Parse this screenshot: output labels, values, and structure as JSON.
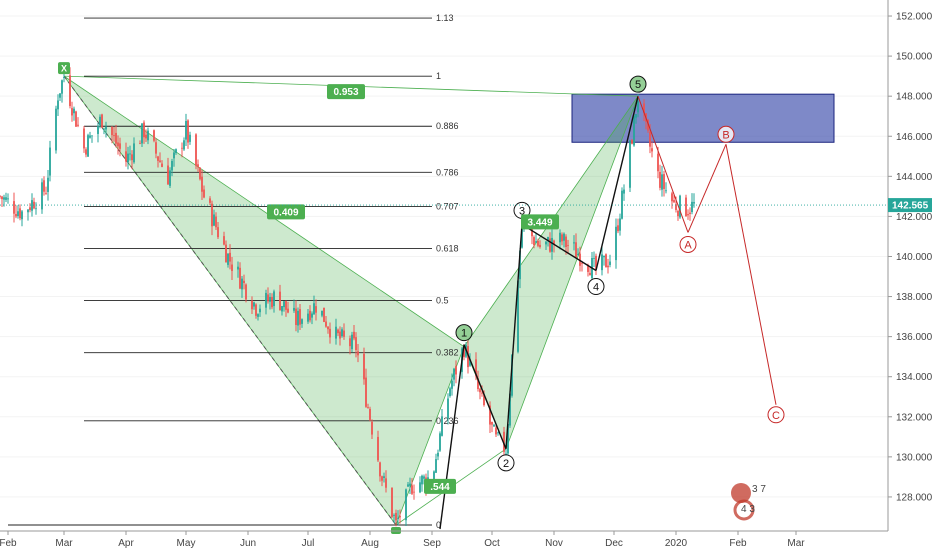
{
  "chart_data": {
    "type": "candlestick",
    "title": "",
    "x_ticks": [
      "Feb",
      "Mar",
      "Apr",
      "May",
      "Jun",
      "Jul",
      "Aug",
      "Sep",
      "Oct",
      "Nov",
      "Dec",
      "2020",
      "Feb",
      "Mar"
    ],
    "y_ticks": [
      "128.000",
      "130.000",
      "132.000",
      "134.000",
      "136.000",
      "138.000",
      "140.000",
      "142.000",
      "144.000",
      "146.000",
      "148.000",
      "150.000",
      "152.000"
    ],
    "ylim": [
      126.3,
      152.8
    ],
    "last_price": "142.565",
    "price_path": [
      [
        "2019-01-28",
        143.0
      ],
      [
        "2019-02-08",
        142.2
      ],
      [
        "2019-02-20",
        143.4
      ],
      [
        "2019-02-26",
        148.1
      ],
      [
        "2019-03-01",
        149.0
      ],
      [
        "2019-03-11",
        145.4
      ],
      [
        "2019-03-20",
        146.9
      ],
      [
        "2019-04-01",
        144.8
      ],
      [
        "2019-04-10",
        146.3
      ],
      [
        "2019-04-22",
        144.0
      ],
      [
        "2019-05-01",
        146.3
      ],
      [
        "2019-05-10",
        143.0
      ],
      [
        "2019-05-22",
        140.0
      ],
      [
        "2019-06-05",
        137.5
      ],
      [
        "2019-06-15",
        138.0
      ],
      [
        "2019-06-25",
        136.8
      ],
      [
        "2019-07-05",
        137.6
      ],
      [
        "2019-07-15",
        136.0
      ],
      [
        "2019-07-25",
        135.5
      ],
      [
        "2019-08-01",
        132.0
      ],
      [
        "2019-08-07",
        129.0
      ],
      [
        "2019-08-14",
        126.6
      ],
      [
        "2019-08-22",
        128.6
      ],
      [
        "2019-09-01",
        129.0
      ],
      [
        "2019-09-10",
        133.5
      ],
      [
        "2019-09-17",
        135.5
      ],
      [
        "2019-09-25",
        133.0
      ],
      [
        "2019-10-03",
        130.8
      ],
      [
        "2019-10-08",
        130.4
      ],
      [
        "2019-10-12",
        136.5
      ],
      [
        "2019-10-16",
        141.6
      ],
      [
        "2019-10-25",
        140.5
      ],
      [
        "2019-11-05",
        140.8
      ],
      [
        "2019-11-15",
        140.0
      ],
      [
        "2019-11-22",
        139.3
      ],
      [
        "2019-11-30",
        140.0
      ],
      [
        "2019-12-07",
        144.0
      ],
      [
        "2019-12-13",
        148.0
      ],
      [
        "2019-12-17",
        146.2
      ],
      [
        "2019-12-23",
        144.0
      ],
      [
        "2019-12-31",
        142.6
      ],
      [
        "2020-01-07",
        142.4
      ],
      [
        "2020-01-11",
        142.6
      ]
    ],
    "fib_levels": [
      {
        "label": "1.13",
        "price": 151.9
      },
      {
        "label": "1",
        "price": 149.0
      },
      {
        "label": "0.886",
        "price": 146.5
      },
      {
        "label": "0.786",
        "price": 144.2
      },
      {
        "label": "0.707",
        "price": 142.5
      },
      {
        "label": "0.618",
        "price": 140.4
      },
      {
        "label": "0.5",
        "price": 137.8
      },
      {
        "label": "0.382",
        "price": 135.2
      },
      {
        "label": "0.236",
        "price": 131.8
      },
      {
        "label": "0",
        "price": 126.6
      }
    ],
    "pattern_points": [
      {
        "label": "X",
        "date": "2019-03-01",
        "price": 149.0
      },
      {
        "label": "",
        "date": "2019-08-14",
        "price": 126.6
      },
      {
        "label": "",
        "date": "2019-09-17",
        "price": 135.5
      },
      {
        "label": "",
        "date": "2019-10-08",
        "price": 130.4
      },
      {
        "label": "",
        "date": "2019-12-13",
        "price": 148.0
      }
    ],
    "ratios": [
      {
        "text": "0.953",
        "date": "2019-07-20",
        "price": 148.2
      },
      {
        "text": "0.409",
        "date": "2019-06-20",
        "price": 142.2
      },
      {
        "text": "3.449",
        "date": "2019-10-25",
        "price": 141.7
      },
      {
        "text": ".544",
        "date": "2019-09-05",
        "price": 128.5
      }
    ],
    "elliott_waves": [
      {
        "label": "1",
        "date": "2019-09-17",
        "price": 135.6
      },
      {
        "label": "2",
        "date": "2019-10-08",
        "price": 130.4
      },
      {
        "label": "3",
        "date": "2019-10-16",
        "price": 141.6
      },
      {
        "label": "4",
        "date": "2019-11-22",
        "price": 139.3
      },
      {
        "label": "5",
        "date": "2019-12-13",
        "price": 148.0
      }
    ],
    "corrective_waves": [
      {
        "label": "",
        "date": "2019-12-13",
        "price": 148.0
      },
      {
        "label": "A",
        "date": "2020-01-07",
        "price": 141.2
      },
      {
        "label": "B",
        "date": "2020-01-26",
        "price": 145.6
      },
      {
        "label": "C",
        "date": "2020-02-20",
        "price": 132.6
      }
    ],
    "resistance_zone": {
      "from_date": "2019-11-10",
      "to_date": "2020-03-20",
      "price_low": 145.7,
      "price_high": 148.1
    },
    "legend": []
  },
  "colors": {
    "up": "#26a69a",
    "down": "#ef5350",
    "pattern_fill": "rgba(76,175,80,0.28)",
    "pattern_line": "#4caf50",
    "ratio_badge": "#4caf50",
    "zone_fill": "rgba(57,73,171,0.65)",
    "zone_border": "#1a237e",
    "corrective": "#c62828",
    "fib_line": "#222222",
    "last_price_line": "#26a69a"
  },
  "watermark": {
    "numbers": [
      "3 7",
      "4 3"
    ]
  }
}
